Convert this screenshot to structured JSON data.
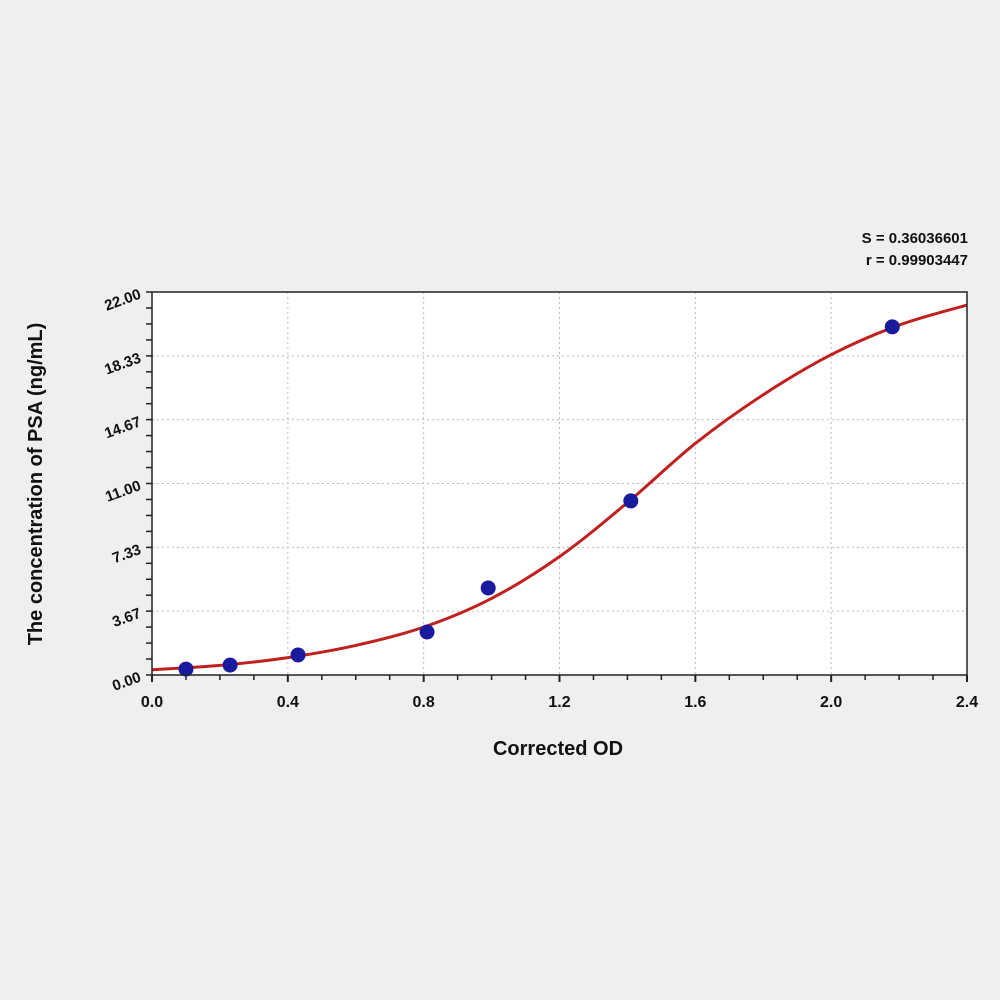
{
  "chart_data": {
    "type": "scatter",
    "title": "",
    "xlabel": "Corrected OD",
    "ylabel": "The concentration of PSA (ng/mL)",
    "xlim": [
      0,
      2.4
    ],
    "ylim": [
      0,
      22
    ],
    "x_ticks": [
      "0.0",
      "0.4",
      "0.8",
      "1.2",
      "1.6",
      "2.0",
      "2.4"
    ],
    "y_ticks": [
      "0.00",
      "3.67",
      "7.33",
      "11.00",
      "14.67",
      "18.33",
      "22.00"
    ],
    "grid": true,
    "annotations": {
      "s": "S = 0.36036601",
      "r": "r = 0.99903447"
    },
    "points": {
      "x": [
        0.1,
        0.23,
        0.43,
        0.81,
        0.99,
        1.41,
        2.18
      ],
      "y": [
        0.34,
        0.57,
        1.15,
        2.47,
        5.0,
        10.0,
        20.0
      ]
    },
    "fit_curve": {
      "x": [
        0.0,
        0.2,
        0.4,
        0.6,
        0.8,
        1.0,
        1.2,
        1.4,
        1.6,
        1.8,
        2.0,
        2.2,
        2.4
      ],
      "y": [
        0.3,
        0.55,
        1.0,
        1.7,
        2.75,
        4.4,
        6.8,
        9.9,
        13.3,
        16.1,
        18.4,
        20.1,
        21.25
      ]
    },
    "colors": {
      "points": "#1a1a9c",
      "curve": "#c0201e",
      "plot_bg": "#ffffff"
    }
  }
}
